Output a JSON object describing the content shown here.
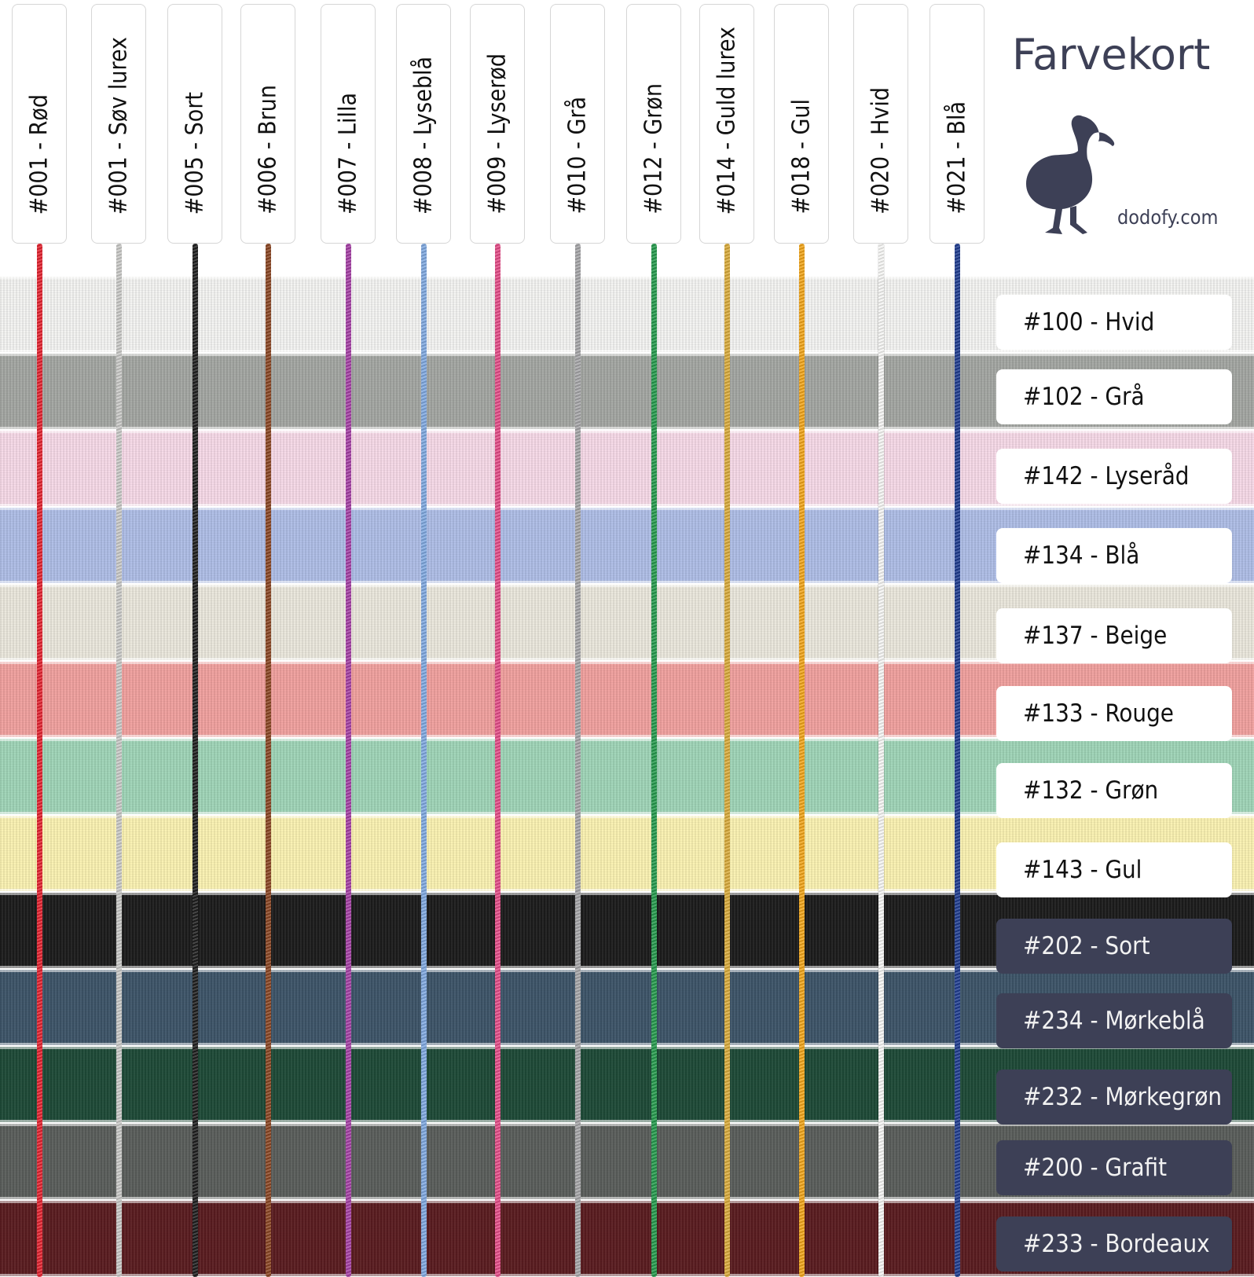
{
  "title": "Farvekort",
  "brand": "dodofy.com",
  "threads": [
    {
      "label": "#001 - Rød",
      "color": "#e3222f"
    },
    {
      "label": "#001 - Søv lurex",
      "color": "#c9c9c7"
    },
    {
      "label": "#005 - Sort",
      "color": "#1e1e1e"
    },
    {
      "label": "#006 - Brun",
      "color": "#8a4522"
    },
    {
      "label": "#007 - Lilla",
      "color": "#a540a5"
    },
    {
      "label": "#008 - Lyseblå",
      "color": "#7fa8e0"
    },
    {
      "label": "#009 - Lyserød",
      "color": "#e44c87"
    },
    {
      "label": "#010 - Grå",
      "color": "#a6a6a8"
    },
    {
      "label": "#012 - Grøn",
      "color": "#249a4c"
    },
    {
      "label": "#014 - Guld lurex",
      "color": "#d9ab3a"
    },
    {
      "label": "#018 - Gul",
      "color": "#f2a519"
    },
    {
      "label": "#020 - Hvid",
      "color": "#f7f7f5"
    },
    {
      "label": "#021 - Blå",
      "color": "#1f3c8f"
    }
  ],
  "ribbons": [
    {
      "label": "#100 - Hvid",
      "color": "#f3f3f1",
      "tone": "light"
    },
    {
      "label": "#102 - Grå",
      "color": "#a3a6a2",
      "tone": "light"
    },
    {
      "label": "#142 - Lyseråd",
      "color": "#f6d9e7",
      "tone": "light"
    },
    {
      "label": "#134 - Blå",
      "color": "#aebde6",
      "tone": "light"
    },
    {
      "label": "#137 - Beige",
      "color": "#eae7dc",
      "tone": "light"
    },
    {
      "label": "#133 - Rouge",
      "color": "#f0a09e",
      "tone": "light"
    },
    {
      "label": "#132 - Grøn",
      "color": "#9fd4b7",
      "tone": "light"
    },
    {
      "label": "#143 - Gul",
      "color": "#faf1b1",
      "tone": "light"
    },
    {
      "label": "#202 - Sort",
      "color": "#1c1c1c",
      "tone": "dark"
    },
    {
      "label": "#234 - Mørkeblå",
      "color": "#3d5468",
      "tone": "dark"
    },
    {
      "label": "#232 - Mørkegrøn",
      "color": "#1e4a37",
      "tone": "dark"
    },
    {
      "label": "#200 - Grafit",
      "color": "#5a5e5b",
      "tone": "dark"
    },
    {
      "label": "#233 - Bordeaux",
      "color": "#5a1c20",
      "tone": "dark"
    }
  ]
}
